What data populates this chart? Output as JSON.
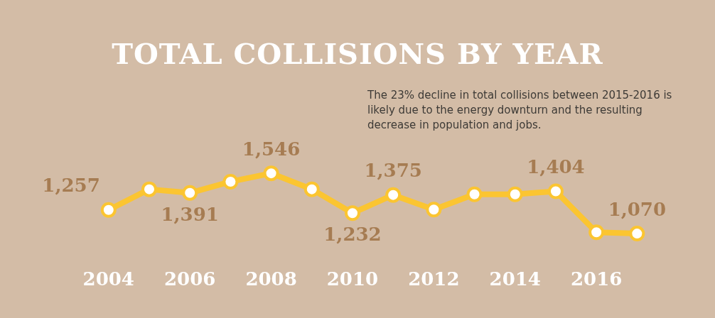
{
  "chart_data": {
    "type": "line",
    "title": "TOTAL COLLISIONS BY YEAR",
    "annotations": [
      "The 23% decline in total collisions between 2015-2016 is likely due to the energy downturn and the resulting decrease in population and jobs."
    ],
    "categories": [
      "2004",
      null,
      "2006",
      null,
      "2008",
      null,
      "2010",
      null,
      "2012",
      null,
      "2014",
      null,
      "2016",
      null
    ],
    "series": [
      {
        "color": "#fbc531",
        "values": [
          1257,
          1420,
          1391,
          1480,
          1546,
          1420,
          1232,
          1375,
          1260,
          1380,
          1380,
          1404,
          1080,
          1070
        ],
        "value_labels": [
          "1,257",
          null,
          "1,391",
          null,
          "1,546",
          null,
          "1,232",
          "1,375",
          null,
          null,
          null,
          "1,404",
          null,
          "1,070"
        ]
      }
    ],
    "tick_labels": "x",
    "grid": false,
    "legend": false,
    "marker": "circle",
    "line_style": "solid"
  }
}
